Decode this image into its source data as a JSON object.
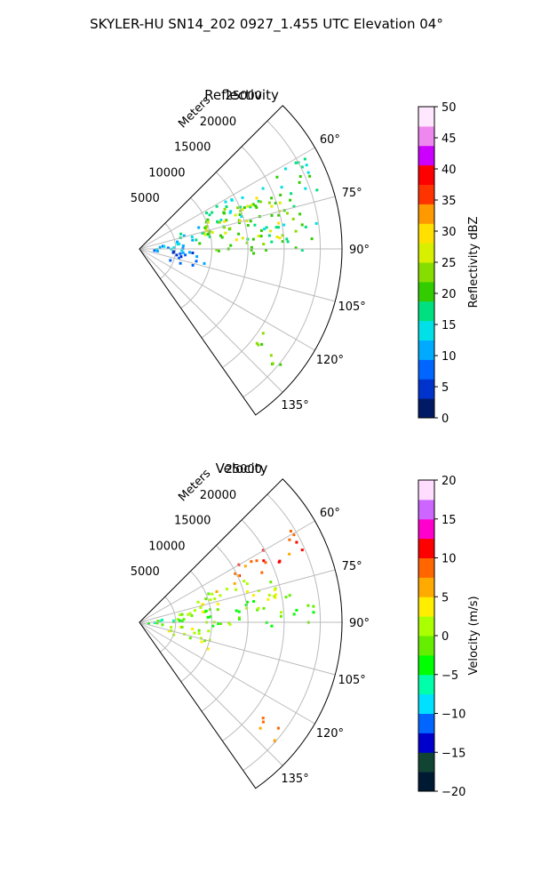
{
  "figure_title": "SKYLER-HU  SN14_202  0927_1.455 UTC Elevation 04°",
  "colors": {
    "reflectivity_scale": [
      "#001a66",
      "#0033cc",
      "#0066ff",
      "#00aaff",
      "#00e0e6",
      "#00e080",
      "#33cc00",
      "#88dd00",
      "#d8f000",
      "#ffe000",
      "#ff9900",
      "#ff3300",
      "#ff0000",
      "#cc00ff",
      "#ee88ee",
      "#ffe8ff"
    ],
    "velocity_scale": [
      "#001a33",
      "#114433",
      "#0000cc",
      "#0066ff",
      "#00e0ff",
      "#00ffaa",
      "#00ff00",
      "#66ee00",
      "#aaff00",
      "#ffee00",
      "#ffaa00",
      "#ff6600",
      "#ff0000",
      "#ff00cc",
      "#cc66ff",
      "#ffddff"
    ],
    "grid": "#bbbbbb"
  },
  "chart_data": [
    {
      "type": "heatmap",
      "projection": "polar-sector",
      "title": "Reflectivity",
      "radial_label": "Meters",
      "radial_ticks": [
        "5000",
        "10000",
        "15000",
        "20000",
        "25000"
      ],
      "r_range": [
        0,
        28000
      ],
      "angular_range_deg": [
        45,
        145
      ],
      "angular_ticks": [
        "60°",
        "75°",
        "90°",
        "105°",
        "120°",
        "135°"
      ],
      "colorbar": {
        "label": "Reflectivity dBZ",
        "range": [
          0,
          50
        ],
        "ticks": [
          "0",
          "5",
          "10",
          "15",
          "20",
          "25",
          "30",
          "35",
          "40",
          "45",
          "50"
        ]
      },
      "echo_regions": [
        {
          "az": [
            60,
            84
          ],
          "r": [
            8000,
            26000
          ],
          "value": 18
        },
        {
          "az": [
            64,
            86
          ],
          "r": [
            9000,
            22000
          ],
          "value": 25
        },
        {
          "az": [
            84,
            92
          ],
          "r": [
            10000,
            24000
          ],
          "value": 20
        },
        {
          "az": [
            66,
            80
          ],
          "r": [
            5000,
            9000
          ],
          "value": 14
        },
        {
          "az": [
            76,
            94
          ],
          "r": [
            1000,
            6000
          ],
          "value": 12
        },
        {
          "az": [
            92,
            110
          ],
          "r": [
            4000,
            9000
          ],
          "value": 8
        },
        {
          "az": [
            124,
            132
          ],
          "r": [
            20000,
            26000
          ],
          "value": 22
        }
      ]
    },
    {
      "type": "heatmap",
      "projection": "polar-sector",
      "title": "Velocity",
      "radial_label": "Meters",
      "radial_ticks": [
        "5000",
        "10000",
        "15000",
        "20000",
        "25000"
      ],
      "r_range": [
        0,
        28000
      ],
      "angular_range_deg": [
        45,
        145
      ],
      "angular_ticks": [
        "60°",
        "75°",
        "90°",
        "105°",
        "120°",
        "135°"
      ],
      "colorbar": {
        "label": "Velocity (m/s)",
        "range": [
          -20,
          20
        ],
        "ticks": [
          "−20",
          "−15",
          "−10",
          "−5",
          "0",
          "5",
          "10",
          "15",
          "20"
        ]
      },
      "echo_regions": [
        {
          "az": [
            58,
            68
          ],
          "r": [
            14000,
            26000
          ],
          "value": 10
        },
        {
          "az": [
            66,
            80
          ],
          "r": [
            8000,
            20000
          ],
          "value": 2
        },
        {
          "az": [
            78,
            92
          ],
          "r": [
            9000,
            24000
          ],
          "value": -2
        },
        {
          "az": [
            72,
            84
          ],
          "r": [
            5000,
            9000
          ],
          "value": 1
        },
        {
          "az": [
            80,
            94
          ],
          "r": [
            1000,
            6000
          ],
          "value": -3
        },
        {
          "az": [
            94,
            112
          ],
          "r": [
            4000,
            10000
          ],
          "value": 2
        },
        {
          "az": [
            126,
            132
          ],
          "r": [
            20000,
            26000
          ],
          "value": 9
        }
      ]
    }
  ]
}
